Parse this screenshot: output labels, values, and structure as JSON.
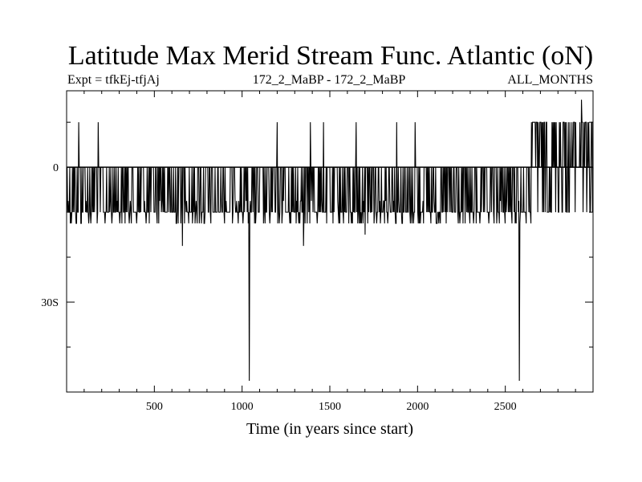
{
  "header": {
    "title": "Latitude Max Merid Stream Func. Atlantic (oN)",
    "expt": "Expt = tfkEj-tfjAj",
    "run": "172_2_MaBP - 172_2_MaBP",
    "months": "ALL_MONTHS"
  },
  "chart_data": {
    "type": "line",
    "title": "Latitude Max Merid Stream Func. Atlantic (oN)",
    "xlabel": "Time (in years since start)",
    "ylabel": "",
    "xlim": [
      0,
      3000
    ],
    "ylim": [
      -50,
      17
    ],
    "x_ticks": [
      {
        "value": 500,
        "label": "500"
      },
      {
        "value": 1000,
        "label": "1000"
      },
      {
        "value": 1500,
        "label": "1500"
      },
      {
        "value": 2000,
        "label": "2000"
      },
      {
        "value": 2500,
        "label": "2500"
      }
    ],
    "y_ticks": [
      {
        "value": 0,
        "label": "0"
      },
      {
        "value": -30,
        "label": "30S"
      }
    ],
    "grid": false,
    "baseline_value": 0,
    "regimes": [
      {
        "from": 0,
        "to": 2650,
        "typical": [
          -10,
          0
        ],
        "range": [
          -12.5,
          0
        ]
      },
      {
        "from": 2650,
        "to": 3000,
        "typical": [
          -10,
          10
        ],
        "range": [
          -10,
          10
        ]
      }
    ],
    "notable_spikes": [
      {
        "x": 70,
        "y": 10
      },
      {
        "x": 180,
        "y": 10
      },
      {
        "x": 1200,
        "y": 10
      },
      {
        "x": 1390,
        "y": 10
      },
      {
        "x": 1465,
        "y": 10
      },
      {
        "x": 1650,
        "y": 10
      },
      {
        "x": 1880,
        "y": 10
      },
      {
        "x": 1985,
        "y": 10
      },
      {
        "x": 2650,
        "y": 10
      },
      {
        "x": 2680,
        "y": 10
      },
      {
        "x": 2935,
        "y": 15
      },
      {
        "x": 1040,
        "y": -47.5
      },
      {
        "x": 2580,
        "y": -47.5
      },
      {
        "x": 660,
        "y": -17.5
      },
      {
        "x": 1700,
        "y": -15
      },
      {
        "x": 1350,
        "y": -17.5
      }
    ]
  }
}
